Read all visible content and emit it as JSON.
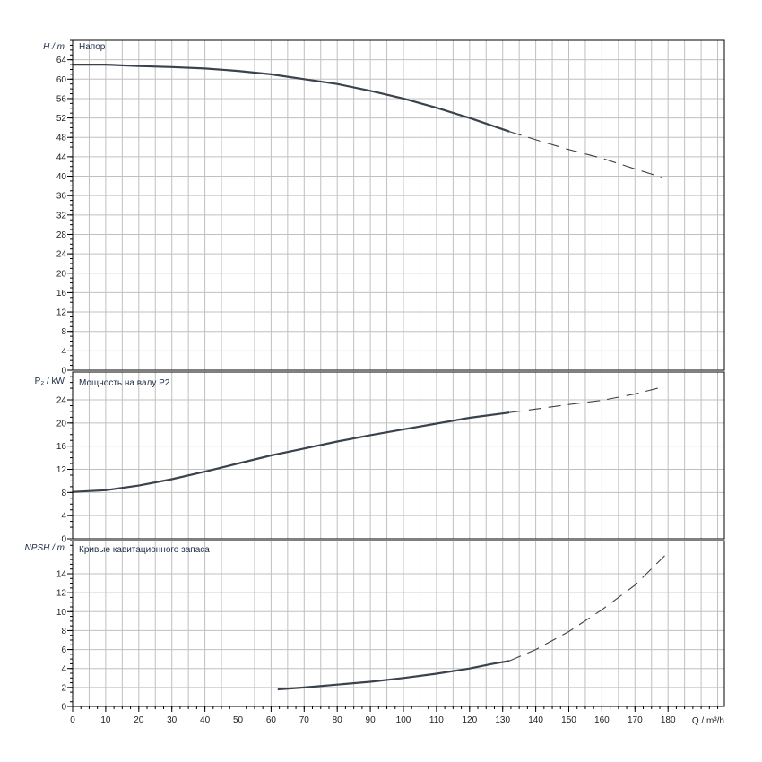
{
  "chart_data": [
    {
      "type": "line",
      "title": "Напор",
      "ylabel": "H / m",
      "xlabel": "Q / m³/h",
      "xlim": [
        0,
        197
      ],
      "ylim": [
        0,
        68
      ],
      "yticks": [
        0,
        4,
        8,
        12,
        16,
        20,
        24,
        28,
        32,
        36,
        40,
        44,
        48,
        52,
        56,
        60,
        64
      ],
      "grid": true,
      "series": [
        {
          "style": "solid",
          "x": [
            0,
            10,
            20,
            30,
            40,
            50,
            60,
            70,
            80,
            90,
            100,
            110,
            120,
            132
          ],
          "y": [
            63,
            63,
            62.7,
            62.5,
            62.2,
            61.7,
            61,
            60,
            59,
            57.6,
            56,
            54.1,
            52,
            49.2
          ]
        },
        {
          "style": "dashed",
          "x": [
            132,
            140,
            150,
            160,
            170,
            178
          ],
          "y": [
            49.2,
            47.5,
            45.5,
            43.7,
            41.5,
            39.8
          ]
        }
      ]
    },
    {
      "type": "line",
      "title": "Мощность на валу P2",
      "ylabel": "P₂ / kW",
      "xlim": [
        0,
        197
      ],
      "ylim": [
        0,
        28.8
      ],
      "yticks": [
        0,
        4,
        8,
        12,
        16,
        20,
        24
      ],
      "grid": true,
      "series": [
        {
          "style": "solid",
          "x": [
            0,
            10,
            20,
            30,
            40,
            50,
            60,
            70,
            80,
            90,
            100,
            110,
            120,
            132
          ],
          "y": [
            8.1,
            8.4,
            9.2,
            10.3,
            11.6,
            13,
            14.4,
            15.6,
            16.8,
            17.9,
            18.9,
            19.9,
            20.9,
            21.8
          ]
        },
        {
          "style": "dashed",
          "x": [
            132,
            140,
            150,
            160,
            170,
            179
          ],
          "y": [
            21.8,
            22.4,
            23.2,
            23.9,
            25,
            26.3
          ]
        }
      ]
    },
    {
      "type": "line",
      "title": "Кривые кавитационного запаса",
      "ylabel": "NPSH / m",
      "xlim": [
        0,
        197
      ],
      "ylim": [
        0,
        17.5
      ],
      "yticks": [
        0,
        2,
        4,
        6,
        8,
        10,
        12,
        14
      ],
      "xticks": [
        0,
        10,
        20,
        30,
        40,
        50,
        60,
        70,
        80,
        90,
        100,
        110,
        120,
        130,
        140,
        150,
        160,
        170,
        180
      ],
      "grid": true,
      "series": [
        {
          "style": "solid",
          "x": [
            62,
            70,
            80,
            90,
            100,
            110,
            120,
            127,
            132
          ],
          "y": [
            1.8,
            2.0,
            2.3,
            2.6,
            3.0,
            3.45,
            4.0,
            4.5,
            4.8
          ]
        },
        {
          "style": "dashed",
          "x": [
            132,
            140,
            150,
            160,
            170,
            179
          ],
          "y": [
            4.8,
            6,
            7.9,
            10.2,
            12.8,
            15.9
          ]
        }
      ]
    }
  ],
  "colors": {
    "curve": "#3a424d",
    "grid": "#c0c0c0",
    "axis": "#000000"
  }
}
